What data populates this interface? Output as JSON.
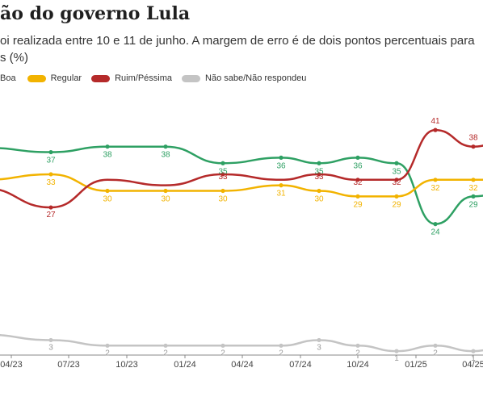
{
  "header": {
    "title": "ão do governo Lula",
    "subtitle": "oi realizada entre 10 e 11 de junho. A margem de erro é de dois pontos percentuais para s (%)"
  },
  "legend": {
    "items": [
      {
        "label": "Boa",
        "color": "#2ea063"
      },
      {
        "label": "Regular",
        "color": "#f2b300"
      },
      {
        "label": "Ruim/Péssima",
        "color": "#b52a2a"
      },
      {
        "label": "Não sabe/Não respondeu",
        "color": "#c4c4c4"
      }
    ]
  },
  "chart_data": {
    "type": "line",
    "title": "ão do governo Lula",
    "x_ticks": [
      "04/23",
      "07/23",
      "10/23",
      "01/24",
      "04/24",
      "07/24",
      "10/24",
      "01/25",
      "04/25"
    ],
    "x": [
      "02/23",
      "06/23",
      "08/23",
      "12/23",
      "03/24",
      "05/24",
      "08/24",
      "09/24",
      "12/24",
      "02/25",
      "04/25"
    ],
    "series": [
      {
        "name": "Ótima/Boa",
        "color": "#2ea063",
        "values": [
          null,
          37,
          38,
          38,
          35,
          36,
          35,
          36,
          35,
          24,
          29
        ],
        "labels": [
          "",
          "37",
          "38",
          "38",
          "35",
          "36",
          "35",
          "36",
          "35",
          "24",
          "29"
        ]
      },
      {
        "name": "Regular",
        "color": "#f2b300",
        "values": [
          null,
          33,
          30,
          30,
          30,
          31,
          30,
          29,
          29,
          32,
          32
        ],
        "labels": [
          "",
          "33",
          "30",
          "30",
          "30",
          "31",
          "30",
          "29",
          "29",
          "32",
          "32"
        ]
      },
      {
        "name": "Ruim/Péssima",
        "color": "#b52a2a",
        "values": [
          null,
          27,
          null,
          null,
          33,
          null,
          33,
          32,
          32,
          41,
          38
        ],
        "labels": [
          "",
          "27",
          "",
          "",
          "33",
          "",
          "33",
          "32",
          "32",
          "41",
          "38"
        ]
      },
      {
        "name": "Não sabe/Não respondeu",
        "color": "#c4c4c4",
        "values": [
          null,
          3,
          2,
          2,
          2,
          2,
          3,
          2,
          1,
          2,
          1
        ],
        "labels": [
          "",
          "3",
          "2",
          "2",
          "2",
          "2",
          "3",
          "2",
          "1",
          "2",
          "1"
        ]
      }
    ],
    "grid": false,
    "legend_position": "top-left"
  }
}
